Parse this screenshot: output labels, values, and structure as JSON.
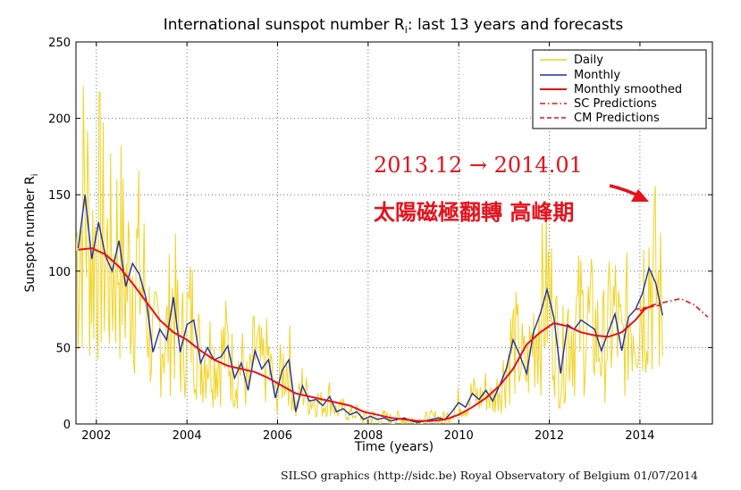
{
  "chart_data": {
    "type": "line",
    "title": "International sunspot number R",
    "title_subscript": "i",
    "title_suffix": ": last 13 years and forecasts",
    "xlabel": "Time (years)",
    "ylabel": "Sunspot number R",
    "ylabel_subscript": "i",
    "xlim": [
      2001.55,
      2015.6
    ],
    "ylim": [
      0,
      250
    ],
    "x_ticks": [
      2002,
      2004,
      2006,
      2008,
      2010,
      2012,
      2014
    ],
    "x_tick_labels": [
      "2002",
      "2004",
      "2006",
      "2008",
      "2010",
      "2012",
      "2014"
    ],
    "y_ticks": [
      0,
      50,
      100,
      150,
      200,
      250
    ],
    "y_tick_labels": [
      "0",
      "50",
      "100",
      "150",
      "200",
      "250"
    ],
    "grid": true,
    "legend_position": "top-right",
    "legend": [
      {
        "label": "Daily",
        "color": "#f2d320",
        "style": "solid"
      },
      {
        "label": "Monthly",
        "color": "#1f2fa8",
        "style": "solid"
      },
      {
        "label": "Monthly smoothed",
        "color": "#e8101a",
        "style": "solid"
      },
      {
        "label": "SC Predictions",
        "color": "#e8101a",
        "style": "dashdot"
      },
      {
        "label": "CM Predictions",
        "color": "#e8101a",
        "style": "dashed"
      }
    ],
    "series": [
      {
        "name": "Monthly",
        "color": "#1f2fa8",
        "x": [
          2001.6,
          2001.75,
          2001.9,
          2002.05,
          2002.2,
          2002.35,
          2002.5,
          2002.65,
          2002.8,
          2002.95,
          2003.1,
          2003.25,
          2003.4,
          2003.55,
          2003.7,
          2003.85,
          2004.0,
          2004.15,
          2004.3,
          2004.45,
          2004.6,
          2004.75,
          2004.9,
          2005.05,
          2005.2,
          2005.35,
          2005.5,
          2005.65,
          2005.8,
          2005.95,
          2006.1,
          2006.25,
          2006.4,
          2006.55,
          2006.7,
          2006.85,
          2007.0,
          2007.15,
          2007.3,
          2007.45,
          2007.6,
          2007.75,
          2007.9,
          2008.05,
          2008.2,
          2008.35,
          2008.5,
          2008.65,
          2008.8,
          2008.95,
          2009.1,
          2009.25,
          2009.4,
          2009.55,
          2009.7,
          2009.85,
          2010.0,
          2010.15,
          2010.3,
          2010.45,
          2010.6,
          2010.75,
          2010.9,
          2011.05,
          2011.2,
          2011.35,
          2011.5,
          2011.65,
          2011.8,
          2011.95,
          2012.1,
          2012.25,
          2012.4,
          2012.55,
          2012.7,
          2012.85,
          2013.0,
          2013.15,
          2013.3,
          2013.45,
          2013.6,
          2013.75,
          2013.9,
          2014.05,
          2014.2,
          2014.35,
          2014.5
        ],
        "values": [
          115,
          150,
          108,
          132,
          110,
          100,
          120,
          90,
          105,
          98,
          82,
          47,
          62,
          55,
          83,
          47,
          65,
          68,
          40,
          50,
          42,
          44,
          51,
          30,
          40,
          22,
          48,
          36,
          42,
          17,
          35,
          42,
          8,
          25,
          15,
          16,
          12,
          18,
          8,
          10,
          6,
          8,
          3,
          5,
          3,
          4,
          2,
          3,
          4,
          2,
          1,
          2,
          3,
          4,
          3,
          8,
          14,
          11,
          20,
          16,
          22,
          15,
          25,
          36,
          55,
          45,
          33,
          60,
          72,
          88,
          70,
          33,
          65,
          62,
          68,
          65,
          62,
          48,
          60,
          72,
          48,
          70,
          75,
          85,
          102,
          92,
          71
        ]
      },
      {
        "name": "Monthly smoothed",
        "color": "#e8101a",
        "x": [
          2001.6,
          2001.9,
          2002.2,
          2002.5,
          2002.8,
          2003.1,
          2003.4,
          2003.7,
          2004.0,
          2004.3,
          2004.6,
          2004.9,
          2005.2,
          2005.5,
          2005.8,
          2006.1,
          2006.4,
          2006.7,
          2007.0,
          2007.3,
          2007.6,
          2007.9,
          2008.2,
          2008.5,
          2008.8,
          2009.1,
          2009.4,
          2009.7,
          2010.0,
          2010.3,
          2010.6,
          2010.9,
          2011.2,
          2011.5,
          2011.8,
          2012.1,
          2012.4,
          2012.7,
          2013.0,
          2013.3,
          2013.6,
          2013.9,
          2014.1,
          2014.3
        ],
        "values": [
          114,
          115,
          111,
          103,
          92,
          80,
          68,
          60,
          55,
          48,
          42,
          38,
          36,
          34,
          30,
          25,
          20,
          18,
          16,
          14,
          12,
          8,
          6,
          4,
          3,
          2,
          2,
          3,
          6,
          11,
          17,
          25,
          36,
          52,
          60,
          66,
          64,
          60,
          58,
          57,
          60,
          68,
          75,
          78
        ]
      },
      {
        "name": "SC Predictions",
        "color": "#e8101a",
        "x": [
          2014.0,
          2014.3,
          2014.6,
          2014.9,
          2015.2,
          2015.5
        ],
        "values": [
          74,
          78,
          80,
          82,
          78,
          70
        ]
      },
      {
        "name": "CM Predictions",
        "color": "#e8101a",
        "x": [
          2013.9,
          2014.1,
          2014.3,
          2014.5
        ],
        "values": [
          75,
          76,
          77,
          78
        ]
      }
    ],
    "daily_x_range": [
      2001.55,
      2014.5
    ]
  },
  "annotations": {
    "dates": "2013.12 → 2014.01",
    "caption": "太陽磁極翻轉 高峰期"
  },
  "credit": "SILSO graphics (http://sidc.be)  Royal Observatory of Belgium  01/07/2014"
}
